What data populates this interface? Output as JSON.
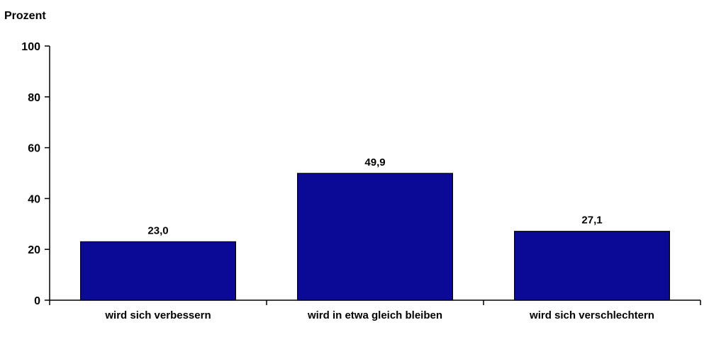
{
  "chart_data": {
    "type": "bar",
    "ylabel": "Prozent",
    "xlabel": "",
    "ylim": [
      0,
      100
    ],
    "yticks": [
      0,
      20,
      40,
      60,
      80,
      100
    ],
    "categories": [
      "wird sich verbessern",
      "wird in etwa gleich bleiben",
      "wird sich verschlechtern"
    ],
    "values": [
      23.0,
      49.9,
      27.1
    ],
    "data_labels": [
      "23,0",
      "49,9",
      "27,1"
    ],
    "bar_color": "#0a0a96",
    "grid": false,
    "legend": "none"
  }
}
